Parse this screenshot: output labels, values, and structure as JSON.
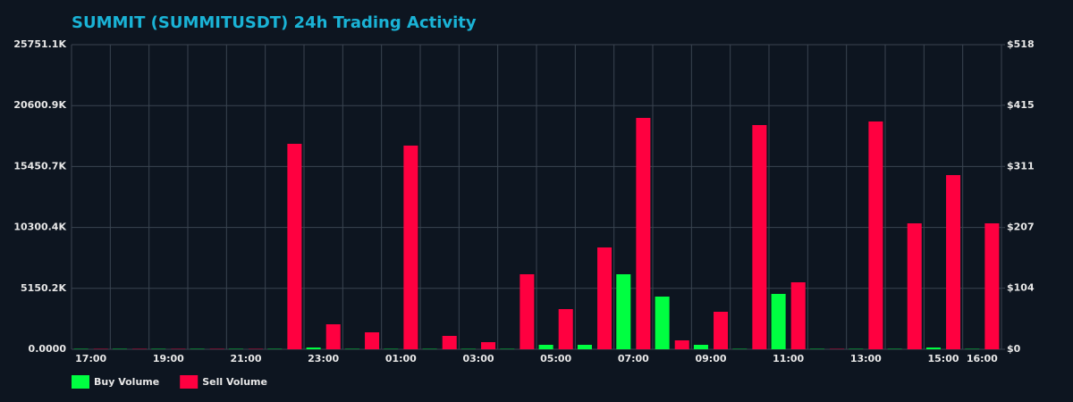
{
  "chart_data": {
    "type": "bar",
    "title": "SUMMIT (SUMMITUSDT) 24h Trading Activity",
    "categories": [
      "17:00",
      null,
      "19:00",
      null,
      "21:00",
      null,
      "23:00",
      null,
      "01:00",
      null,
      "03:00",
      null,
      "05:00",
      null,
      "07:00",
      null,
      "09:00",
      null,
      "11:00",
      null,
      "13:00",
      null,
      "15:00",
      "16:00"
    ],
    "series": [
      {
        "name": "Buy Volume",
        "color": "#00ff41",
        "values": [
          30000,
          30000,
          30000,
          30000,
          30000,
          30000,
          151000,
          30000,
          30000,
          30000,
          30000,
          30000,
          378000,
          378000,
          6344000,
          4456000,
          378000,
          30000,
          4682000,
          30000,
          30000,
          30000,
          151000,
          30000
        ]
      },
      {
        "name": "Sell Volume",
        "color": "#ff0040",
        "values": [
          30000,
          30000,
          30000,
          30000,
          30000,
          17370000,
          2115000,
          1435000,
          17220000,
          1133000,
          604000,
          6344000,
          3398000,
          8610000,
          19560000,
          755000,
          3172000,
          18955000,
          5664000,
          30000,
          19258000,
          10648000,
          14726000,
          10648000
        ]
      }
    ],
    "ylim": [
      0,
      25751100
    ],
    "yticks": [
      {
        "value": 0,
        "label": "0.0000"
      },
      {
        "value": 5150200,
        "label": "5150.2K"
      },
      {
        "value": 10300400,
        "label": "10300.4K"
      },
      {
        "value": 15450700,
        "label": "15450.7K"
      },
      {
        "value": 20600900,
        "label": "20600.9K"
      },
      {
        "value": 25751100,
        "label": "25751.1K"
      }
    ],
    "y2lim": [
      0,
      518
    ],
    "y2ticks": [
      {
        "value": 0,
        "label": "$0"
      },
      {
        "value": 104,
        "label": "$104"
      },
      {
        "value": 207,
        "label": "$207"
      },
      {
        "value": 311,
        "label": "$311"
      },
      {
        "value": 415,
        "label": "$415"
      },
      {
        "value": 518,
        "label": "$518"
      }
    ],
    "grid": true,
    "legend": "bottom-left"
  }
}
